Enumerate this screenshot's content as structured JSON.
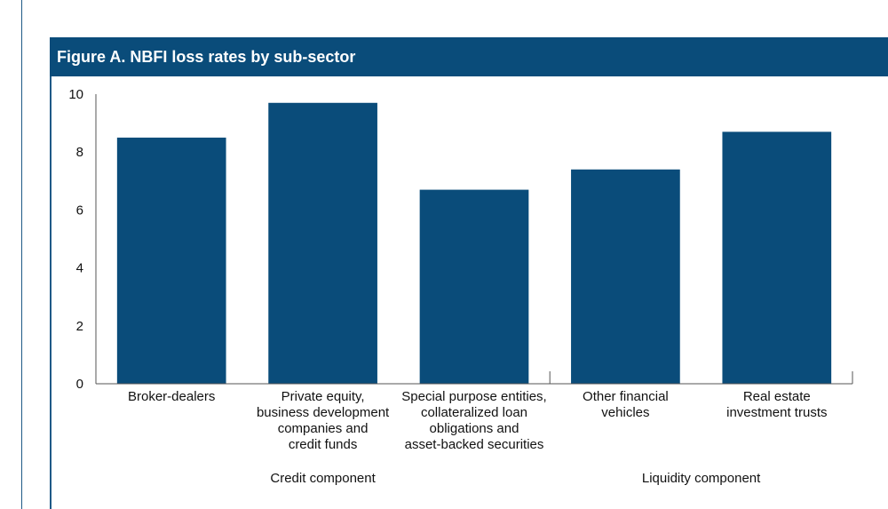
{
  "figure": {
    "title": "Figure A. NBFI loss rates by sub-sector"
  },
  "colors": {
    "header_bg": "#0a4c7a",
    "bar": "#0a4c7a",
    "axis": "#555555",
    "rule": "#1f5a87"
  },
  "chart_data": {
    "type": "bar",
    "title": "Figure A. NBFI loss rates by sub-sector",
    "xlabel": "",
    "ylabel": "",
    "ylim": [
      0,
      10
    ],
    "yticks": [
      0,
      2,
      4,
      6,
      8,
      10
    ],
    "grid": false,
    "categories": [
      "Broker-dealers",
      "Private equity, business development companies and credit funds",
      "Special purpose entities, collateralized loan obligations and asset-backed securities",
      "Other financial vehicles",
      "Real estate investment trusts"
    ],
    "category_label_lines": [
      [
        "Broker-dealers"
      ],
      [
        "Private equity,",
        "business development",
        "companies and",
        "credit funds"
      ],
      [
        "Special purpose entities,",
        "collateralized loan",
        "obligations and",
        "asset-backed securities"
      ],
      [
        "Other financial",
        "vehicles"
      ],
      [
        "Real estate",
        "investment trusts"
      ]
    ],
    "values": [
      8.5,
      9.7,
      6.7,
      7.4,
      8.7
    ],
    "groups": [
      {
        "label": "Credit component",
        "categories": [
          0,
          1,
          2
        ]
      },
      {
        "label": "Liquidity component",
        "categories": [
          3,
          4
        ]
      }
    ]
  }
}
